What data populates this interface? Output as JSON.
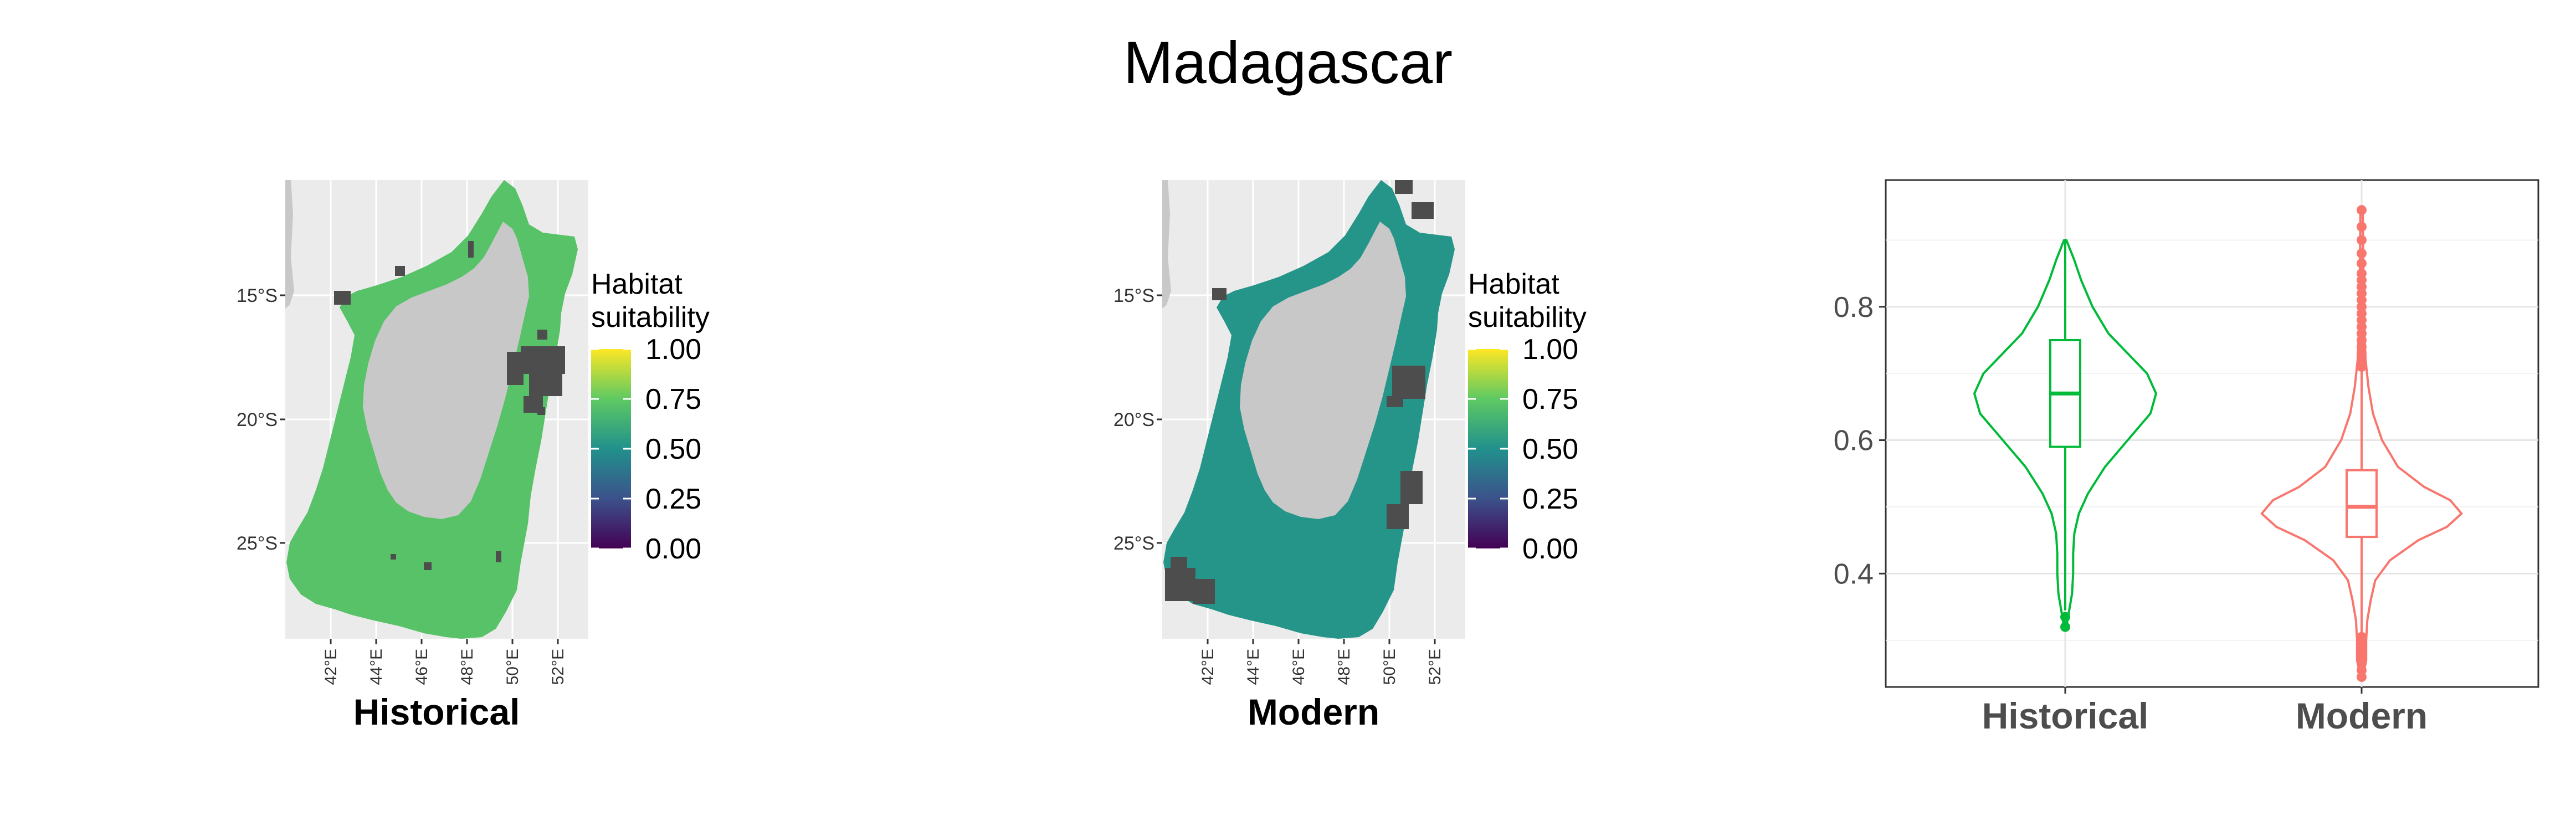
{
  "title": "Madagascar",
  "colors": {
    "panel_background": "#ebebeb",
    "land": "#c8c8c8",
    "no_data": "#4d4d4d",
    "historical": "#00ba38",
    "modern": "#f8766d",
    "viridis": [
      "#440154",
      "#3b528b",
      "#21918c",
      "#5ec962",
      "#fde725"
    ]
  },
  "maps": [
    {
      "id": "historical",
      "label": "Historical",
      "legend_title": [
        "Habitat",
        "suitability"
      ],
      "y_ticks": [
        "15°S",
        "20°S",
        "25°S"
      ],
      "x_ticks": [
        "42°E",
        "44°E",
        "46°E",
        "48°E",
        "50°E",
        "52°E"
      ],
      "legend_ticks": [
        "1.00",
        "0.75",
        "0.50",
        "0.25",
        "0.00"
      ],
      "typical_suitability": 0.72
    },
    {
      "id": "modern",
      "label": "Modern",
      "legend_title": [
        "Habitat",
        "suitability"
      ],
      "y_ticks": [
        "15°S",
        "20°S",
        "25°S"
      ],
      "x_ticks": [
        "42°E",
        "44°E",
        "46°E",
        "48°E",
        "50°E",
        "52°E"
      ],
      "legend_ticks": [
        "1.00",
        "0.75",
        "0.50",
        "0.25",
        "0.00"
      ],
      "typical_suitability": 0.52
    }
  ],
  "chart_data": {
    "type": "violin",
    "categories": [
      "Historical",
      "Modern"
    ],
    "y_ticks": [
      "0.8",
      "0.6",
      "0.4"
    ],
    "ylim": [
      0.23,
      0.99
    ],
    "grid": true,
    "series": [
      {
        "category": "Historical",
        "color": "#00ba38",
        "min": 0.32,
        "max": 0.9,
        "q1": 0.59,
        "median": 0.67,
        "q3": 0.75,
        "whisker_low": 0.345,
        "whisker_high": 0.9,
        "outliers": [
          0.32,
          0.335
        ],
        "density": [
          [
            0.32,
            0.01
          ],
          [
            0.34,
            0.03
          ],
          [
            0.37,
            0.06
          ],
          [
            0.4,
            0.07
          ],
          [
            0.43,
            0.07
          ],
          [
            0.46,
            0.08
          ],
          [
            0.49,
            0.12
          ],
          [
            0.52,
            0.2
          ],
          [
            0.56,
            0.35
          ],
          [
            0.6,
            0.55
          ],
          [
            0.64,
            0.75
          ],
          [
            0.67,
            0.8
          ],
          [
            0.7,
            0.72
          ],
          [
            0.73,
            0.55
          ],
          [
            0.76,
            0.38
          ],
          [
            0.8,
            0.24
          ],
          [
            0.84,
            0.14
          ],
          [
            0.87,
            0.08
          ],
          [
            0.9,
            0.01
          ]
        ]
      },
      {
        "category": "Modern",
        "color": "#f8766d",
        "min": 0.245,
        "max": 0.945,
        "q1": 0.455,
        "median": 0.5,
        "q3": 0.555,
        "whisker_low": 0.31,
        "whisker_high": 0.705,
        "outliers": [
          0.245,
          0.255,
          0.265,
          0.275,
          0.285,
          0.295,
          0.305,
          0.71,
          0.72,
          0.73,
          0.74,
          0.75,
          0.76,
          0.77,
          0.78,
          0.79,
          0.8,
          0.81,
          0.82,
          0.83,
          0.84,
          0.85,
          0.865,
          0.88,
          0.9,
          0.92,
          0.945
        ],
        "density": [
          [
            0.245,
            0.01
          ],
          [
            0.27,
            0.04
          ],
          [
            0.3,
            0.04
          ],
          [
            0.33,
            0.05
          ],
          [
            0.36,
            0.08
          ],
          [
            0.39,
            0.12
          ],
          [
            0.42,
            0.25
          ],
          [
            0.45,
            0.5
          ],
          [
            0.47,
            0.75
          ],
          [
            0.49,
            0.88
          ],
          [
            0.51,
            0.78
          ],
          [
            0.53,
            0.55
          ],
          [
            0.56,
            0.32
          ],
          [
            0.6,
            0.18
          ],
          [
            0.64,
            0.1
          ],
          [
            0.68,
            0.06
          ],
          [
            0.72,
            0.035
          ],
          [
            0.78,
            0.02
          ],
          [
            0.85,
            0.015
          ],
          [
            0.945,
            0.01
          ]
        ]
      }
    ]
  }
}
